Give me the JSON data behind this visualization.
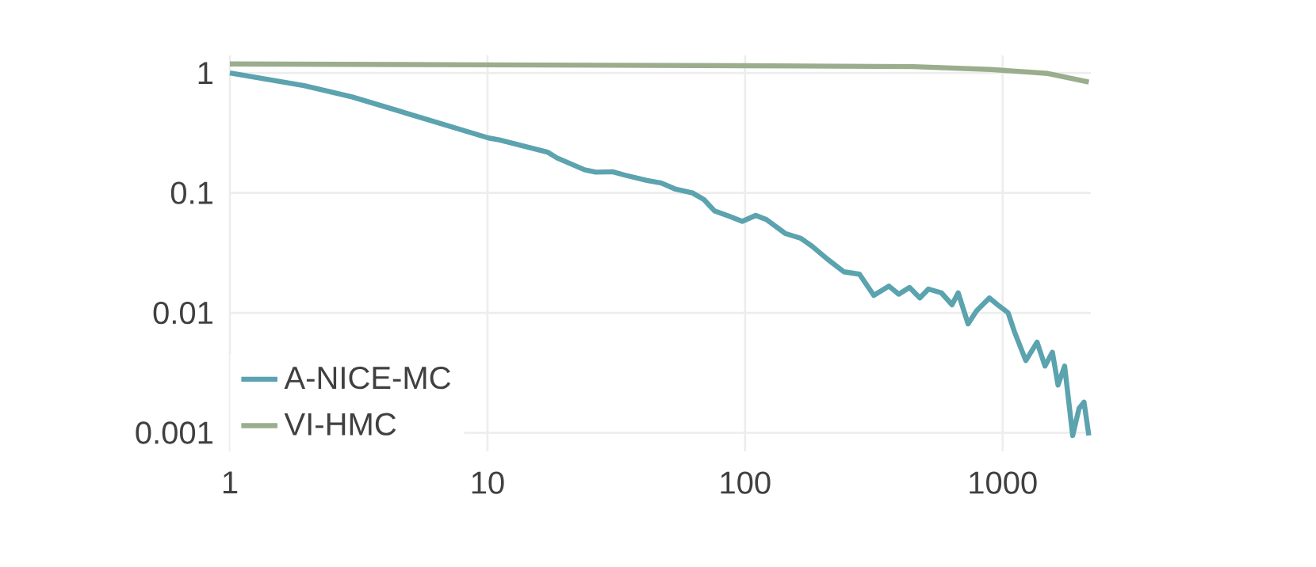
{
  "chart_data": {
    "type": "line",
    "log": "xy",
    "grid": true,
    "legend": "bottom left",
    "xlim": [
      1,
      2200
    ],
    "ylim": [
      0.0007,
      1.4
    ],
    "xticks": [
      1,
      10,
      100,
      1000
    ],
    "yticks": [
      0.001,
      0.01,
      0.1,
      1
    ],
    "series": [
      {
        "name": "A-NICE-MC",
        "color": "#5ba3ae",
        "x": [
          1,
          1.94,
          2.98,
          10.1,
          11.1,
          17.1,
          18.6,
          23.8,
          26.3,
          30.6,
          34,
          41.6,
          47.3,
          53.4,
          62.5,
          69.2,
          76,
          86.7,
          97.5,
          110,
          121,
          143,
          164,
          182,
          209,
          242,
          278,
          316,
          362,
          395,
          435,
          477,
          515,
          578,
          636,
          672,
          734,
          792,
          888,
          955,
          1050,
          1110,
          1230,
          1360,
          1460,
          1560,
          1640,
          1740,
          1870,
          1980,
          2070,
          2160
        ],
        "values": [
          1.0,
          0.785,
          0.632,
          0.287,
          0.277,
          0.219,
          0.196,
          0.156,
          0.149,
          0.15,
          0.141,
          0.127,
          0.121,
          0.108,
          0.1,
          0.088,
          0.071,
          0.064,
          0.058,
          0.065,
          0.06,
          0.046,
          0.042,
          0.036,
          0.028,
          0.022,
          0.021,
          0.014,
          0.0167,
          0.0143,
          0.0163,
          0.0133,
          0.0158,
          0.0147,
          0.0117,
          0.0147,
          0.0081,
          0.0104,
          0.0133,
          0.0117,
          0.01,
          0.007,
          0.004,
          0.0057,
          0.0036,
          0.0047,
          0.0025,
          0.0036,
          0.00095,
          0.0016,
          0.0018,
          0.00095
        ]
      },
      {
        "name": "VI-HMC",
        "color": "#9aad8c",
        "x": [
          1,
          10,
          100,
          450,
          900,
          1500,
          2160
        ],
        "values": [
          1.19,
          1.17,
          1.15,
          1.13,
          1.07,
          0.99,
          0.84
        ]
      }
    ]
  }
}
